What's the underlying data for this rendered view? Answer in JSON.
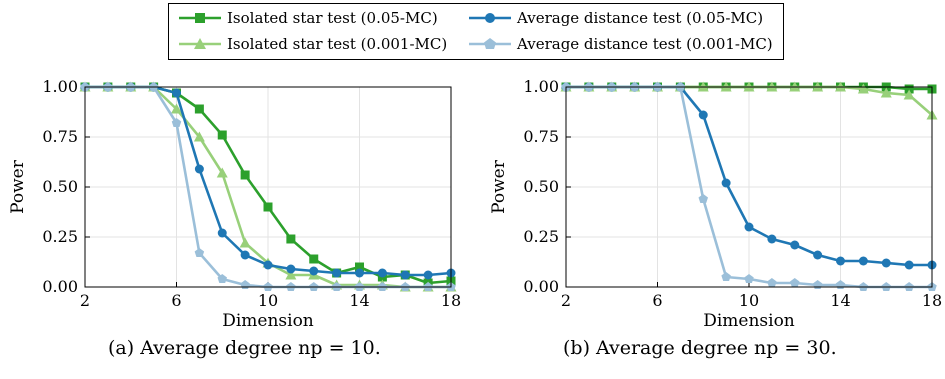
{
  "legend": {
    "items": [
      {
        "label": "Isolated star test (0.05-MC)",
        "color": "#2ca02c",
        "marker": "square"
      },
      {
        "label": "Average distance test (0.05-MC)",
        "color": "#1f77b4",
        "marker": "circle"
      },
      {
        "label": "Isolated star test (0.001-MC)",
        "color": "#98d07a",
        "marker": "triangle"
      },
      {
        "label": "Average distance test (0.001-MC)",
        "color": "#9bbfd9",
        "marker": "pentagon"
      }
    ]
  },
  "captions": {
    "a": "(a) Average degree np = 10.",
    "b": "(b) Average degree np = 30."
  },
  "chart_data": [
    {
      "type": "line",
      "xlabel": "Dimension",
      "ylabel": "Power",
      "xlim": [
        2,
        18
      ],
      "ylim": [
        0,
        1
      ],
      "xticks": [
        "2",
        "6",
        "10",
        "14",
        "18"
      ],
      "yticks": [
        "0.00",
        "0.25",
        "0.50",
        "0.75",
        "1.00"
      ],
      "grid": true,
      "x": [
        2,
        3,
        4,
        5,
        6,
        7,
        8,
        9,
        10,
        11,
        12,
        13,
        14,
        15,
        16,
        17,
        18
      ],
      "series": [
        {
          "name": "Isolated star test (0.05-MC)",
          "color": "#2ca02c",
          "marker": "square",
          "values": [
            1.0,
            1.0,
            1.0,
            1.0,
            0.97,
            0.89,
            0.76,
            0.56,
            0.4,
            0.24,
            0.14,
            0.07,
            0.1,
            0.05,
            0.06,
            0.02,
            0.03
          ]
        },
        {
          "name": "Isolated star test (0.001-MC)",
          "color": "#98d07a",
          "marker": "triangle",
          "values": [
            1.0,
            1.0,
            1.0,
            1.0,
            0.89,
            0.75,
            0.57,
            0.22,
            0.12,
            0.06,
            0.06,
            0.01,
            0.01,
            0.01,
            0.0,
            0.0,
            0.0
          ]
        },
        {
          "name": "Average distance test (0.05-MC)",
          "color": "#1f77b4",
          "marker": "circle",
          "values": [
            1.0,
            1.0,
            1.0,
            1.0,
            0.97,
            0.59,
            0.27,
            0.16,
            0.11,
            0.09,
            0.08,
            0.07,
            0.07,
            0.07,
            0.06,
            0.06,
            0.07
          ]
        },
        {
          "name": "Average distance test (0.001-MC)",
          "color": "#9bbfd9",
          "marker": "pentagon",
          "values": [
            1.0,
            1.0,
            1.0,
            1.0,
            0.82,
            0.17,
            0.04,
            0.01,
            0.0,
            0.0,
            0.0,
            0.0,
            0.0,
            0.0,
            0.0,
            0.0,
            0.0
          ]
        }
      ]
    },
    {
      "type": "line",
      "xlabel": "Dimension",
      "ylabel": "Power",
      "xlim": [
        2,
        18
      ],
      "ylim": [
        0,
        1
      ],
      "xticks": [
        "2",
        "6",
        "10",
        "14",
        "18"
      ],
      "yticks": [
        "0.00",
        "0.25",
        "0.50",
        "0.75",
        "1.00"
      ],
      "grid": true,
      "x": [
        2,
        3,
        4,
        5,
        6,
        7,
        8,
        9,
        10,
        11,
        12,
        13,
        14,
        15,
        16,
        17,
        18
      ],
      "series": [
        {
          "name": "Isolated star test (0.05-MC)",
          "color": "#2ca02c",
          "marker": "square",
          "values": [
            1.0,
            1.0,
            1.0,
            1.0,
            1.0,
            1.0,
            1.0,
            1.0,
            1.0,
            1.0,
            1.0,
            1.0,
            1.0,
            1.0,
            1.0,
            0.99,
            0.99
          ]
        },
        {
          "name": "Isolated star test (0.001-MC)",
          "color": "#98d07a",
          "marker": "triangle",
          "values": [
            1.0,
            1.0,
            1.0,
            1.0,
            1.0,
            1.0,
            1.0,
            1.0,
            1.0,
            1.0,
            1.0,
            1.0,
            1.0,
            0.99,
            0.97,
            0.96,
            0.86
          ]
        },
        {
          "name": "Average distance test (0.05-MC)",
          "color": "#1f77b4",
          "marker": "circle",
          "values": [
            1.0,
            1.0,
            1.0,
            1.0,
            1.0,
            1.0,
            0.86,
            0.52,
            0.3,
            0.24,
            0.21,
            0.16,
            0.13,
            0.13,
            0.12,
            0.11,
            0.11
          ]
        },
        {
          "name": "Average distance test (0.001-MC)",
          "color": "#9bbfd9",
          "marker": "pentagon",
          "values": [
            1.0,
            1.0,
            1.0,
            1.0,
            1.0,
            1.0,
            0.44,
            0.05,
            0.04,
            0.02,
            0.02,
            0.01,
            0.01,
            0.0,
            0.0,
            0.0,
            0.0
          ]
        }
      ]
    }
  ]
}
